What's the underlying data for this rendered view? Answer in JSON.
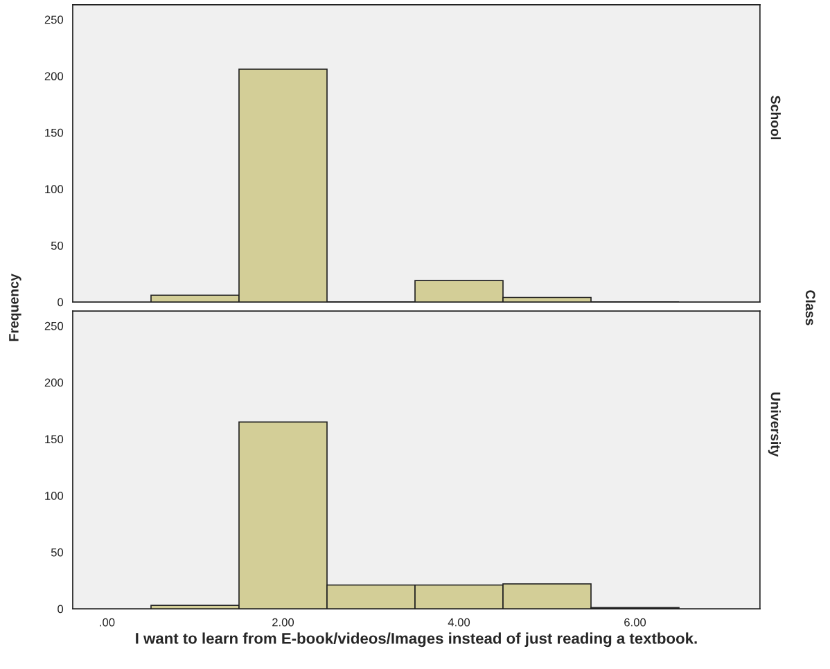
{
  "chart_data": [
    {
      "type": "histogram",
      "ylabel": "Frequency",
      "annotations": [
        "School",
        "Class"
      ],
      "bins": [
        0.5,
        1.5,
        2.5,
        3.5,
        4.5,
        5.5,
        6.5
      ],
      "values": [
        6,
        206,
        0,
        19,
        4,
        0
      ],
      "color": "#d3ce97",
      "xlim": [
        -0.39,
        7.42
      ],
      "ylim": [
        0,
        263
      ],
      "yticks": [
        0,
        50,
        100,
        150,
        200,
        250
      ],
      "tick_labels": "y",
      "grid": false
    },
    {
      "type": "histogram",
      "annotations": [
        "University"
      ],
      "xlabel": "I want to learn from E-book/videos/Images instead of just reading a textbook.",
      "bins": [
        0.5,
        1.5,
        2.5,
        3.5,
        4.5,
        5.5,
        6.5
      ],
      "values": [
        3,
        165,
        21,
        21,
        22,
        1
      ],
      "color": "#d3ce97",
      "xlim": [
        -0.39,
        7.42
      ],
      "xticks": [
        {
          "value": 0,
          "label": ".00"
        },
        {
          "value": 2,
          "label": "2.00"
        },
        {
          "value": 4,
          "label": "4.00"
        },
        {
          "value": 6,
          "label": "6.00"
        }
      ],
      "ylim": [
        0,
        263
      ],
      "yticks": [
        0,
        50,
        100,
        150,
        200,
        250
      ],
      "grid": false
    }
  ]
}
